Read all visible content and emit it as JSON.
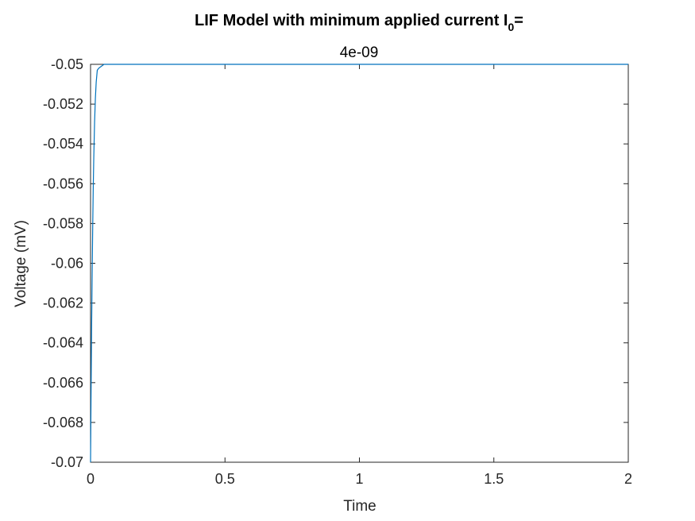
{
  "chart_data": {
    "type": "line",
    "title": "LIF Model with minimum applied current I",
    "title_subscript": "0",
    "title_suffix": "=",
    "subtitle": "4e-09",
    "xlabel": "Time",
    "ylabel": "Voltage (mV)",
    "xlim": [
      0,
      2
    ],
    "ylim": [
      -0.07,
      -0.05
    ],
    "xticks": [
      0,
      0.5,
      1,
      1.5,
      2
    ],
    "xtick_labels": [
      "0",
      "0.5",
      "1",
      "1.5",
      "2"
    ],
    "yticks": [
      -0.07,
      -0.068,
      -0.066,
      -0.064,
      -0.062,
      -0.06,
      -0.058,
      -0.056,
      -0.054,
      -0.052,
      -0.05
    ],
    "ytick_labels": [
      "-0.07",
      "-0.068",
      "-0.066",
      "-0.064",
      "-0.062",
      "-0.06",
      "-0.058",
      "-0.056",
      "-0.054",
      "-0.052",
      "-0.05"
    ],
    "grid": false,
    "series": [
      {
        "color": "#0072bd",
        "x": [
          0,
          0.002,
          0.004,
          0.006,
          0.008,
          0.01,
          0.012,
          0.015,
          0.018,
          0.021,
          0.025,
          0.03,
          0.035,
          0.04,
          0.05,
          0.06,
          0.07,
          0.08,
          0.09,
          0.1,
          0.15,
          0.2,
          0.5,
          1,
          1.5,
          2
        ],
        "y": [
          -0.07,
          -0.0664,
          -0.0632,
          -0.0605,
          -0.0582,
          -0.0562,
          -0.0547,
          -0.0529,
          -0.0517,
          -0.0509,
          -0.0503,
          -0.0502,
          -0.05015,
          -0.0501,
          -0.05,
          -0.05,
          -0.05,
          -0.05,
          -0.05,
          -0.05,
          -0.05,
          -0.05,
          -0.05,
          -0.05,
          -0.05,
          -0.05
        ]
      }
    ]
  }
}
